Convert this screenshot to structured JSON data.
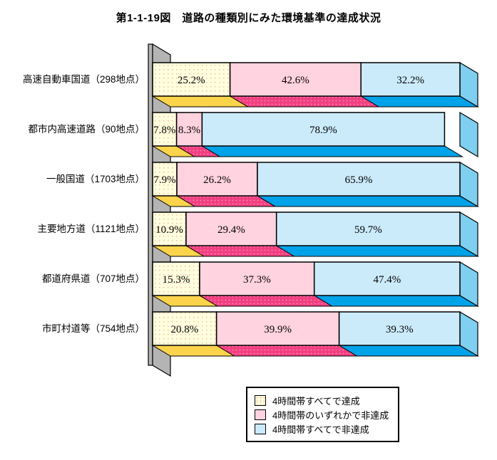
{
  "chart_data": {
    "type": "bar",
    "orientation": "horizontal",
    "stacked": true,
    "style": "3d",
    "title": "第1-1-19図　道路の種類別にみた環境基準の達成状況",
    "unit": "%",
    "xlim": [
      0,
      100
    ],
    "grid": false,
    "legend_position": "bottom-right",
    "wall_color": "#B4B4B4",
    "categories": [
      "高速自動車国道（298地点）",
      "都市内高速道路（90地点）",
      "一般国道（1703地点）",
      "主要地方道（1121地点）",
      "都道府県道（707地点）",
      "市町村道等（754地点）"
    ],
    "series": [
      {
        "name": "4時間帯すべてで達成",
        "values": [
          25.2,
          7.8,
          7.9,
          10.9,
          15.3,
          20.8
        ],
        "face_color": "#FFFEDE",
        "side_color": "#FBD44C",
        "face_dots": true,
        "dot_color": "#F0C3A6"
      },
      {
        "name": "4時間帯のいずれかで非達成",
        "values": [
          42.6,
          8.3,
          26.2,
          29.4,
          37.3,
          39.9
        ],
        "face_color": "#FFD3DF",
        "side_color": "#F23F80",
        "side_dots": true,
        "dot_color": "#FA8FBC"
      },
      {
        "name": "4時間帯すべてで非達成",
        "values": [
          32.2,
          78.9,
          65.9,
          59.7,
          47.4,
          39.3
        ],
        "face_color": "#CBEBFB",
        "side_color": "#00A2E8",
        "cap_color": "#7FCFF0"
      }
    ]
  }
}
